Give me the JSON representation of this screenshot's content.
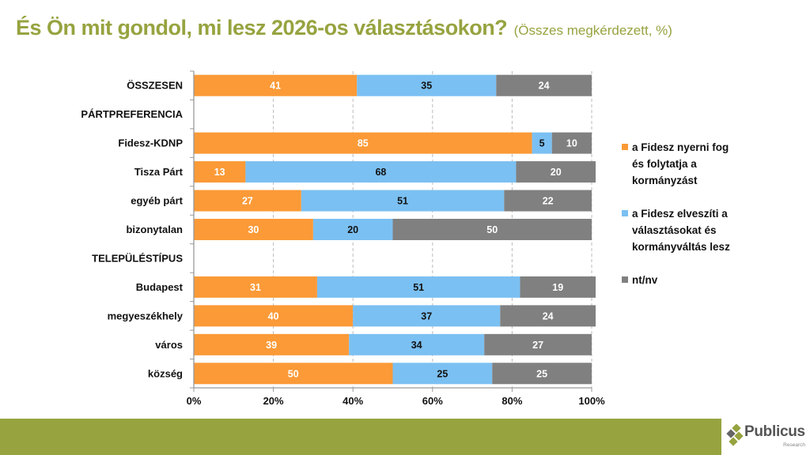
{
  "header": {
    "title": "És Ön mit gondol, mi lesz 2026-os választásokon?",
    "subtitle": "(Összes megkérdezett, %)"
  },
  "colors": {
    "accent_green": "#97a33f",
    "series_orange": "#fb9a37",
    "series_blue": "#7bc0f2",
    "series_gray": "#808080"
  },
  "chart_data": {
    "type": "bar",
    "orientation": "horizontal",
    "stacked": true,
    "title": "És Ön mit gondol, mi lesz 2026-os választásokon?",
    "subtitle": "(Összes megkérdezett, %)",
    "xlabel": "",
    "ylabel": "",
    "xlim": [
      0,
      100
    ],
    "x_ticks": [
      "0%",
      "20%",
      "40%",
      "60%",
      "80%",
      "100%"
    ],
    "grid": "vertical dashed",
    "legend_position": "right",
    "categories": [
      "ÖSSZESEN",
      "PÁRTPREFERENCIA",
      "Fidesz-KDNP",
      "Tisza Párt",
      "egyéb párt",
      "bizonytalan",
      "TELEPÜLÉSTÍPUS",
      "Budapest",
      "megyeszékhely",
      "város",
      "község"
    ],
    "series": [
      {
        "name": "a Fidesz nyerni fog és folytatja a kormányzást",
        "color": "#fb9a37",
        "label_color": "#ffffff",
        "values": [
          41,
          null,
          85,
          13,
          27,
          30,
          null,
          31,
          40,
          39,
          50
        ]
      },
      {
        "name": "a Fidesz elveszíti a választásokat és kormányváltás lesz",
        "color": "#7bc0f2",
        "label_color": "#111111",
        "values": [
          35,
          null,
          5,
          68,
          51,
          20,
          null,
          51,
          37,
          34,
          25
        ]
      },
      {
        "name": "nt/nv",
        "color": "#808080",
        "label_color": "#ffffff",
        "values": [
          24,
          null,
          10,
          20,
          22,
          50,
          null,
          19,
          24,
          27,
          25
        ]
      }
    ]
  },
  "legend": {
    "items": [
      {
        "lines": [
          "a Fidesz nyerni fog",
          "és folytatja a",
          "kormányzást"
        ],
        "color": "#fb9a37"
      },
      {
        "lines": [
          "a Fidesz elveszíti a",
          "választásokat és",
          "kormányváltás lesz"
        ],
        "color": "#7bc0f2"
      },
      {
        "lines": [
          "nt/nv"
        ],
        "color": "#808080"
      }
    ]
  },
  "footer": {
    "logo_name": "Publicus",
    "logo_sub": "Research"
  }
}
